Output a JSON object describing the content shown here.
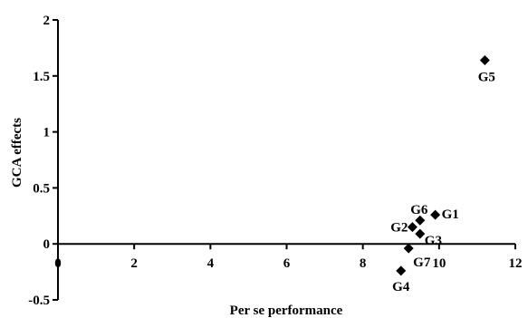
{
  "chart_data": {
    "type": "scatter",
    "title": "",
    "xlabel": "Per se performance",
    "ylabel": "GCA effects",
    "xlim": [
      0,
      12
    ],
    "ylim": [
      -0.5,
      2
    ],
    "x_ticks": [
      0,
      2,
      4,
      6,
      8,
      10,
      12
    ],
    "y_ticks": [
      -0.5,
      0,
      0.5,
      1,
      1.5,
      2
    ],
    "x_tick_labels": [
      "0",
      "2",
      "4",
      "6",
      "8",
      "10",
      "12"
    ],
    "y_tick_labels": [
      "-0.5",
      "0",
      "0.5",
      "1",
      "1.5",
      "2"
    ],
    "grid": false,
    "marker": "diamond",
    "marker_color": "#000000",
    "points": [
      {
        "label": "G1",
        "x": 9.9,
        "y": 0.26
      },
      {
        "label": "G2",
        "x": 9.3,
        "y": 0.15
      },
      {
        "label": "G3",
        "x": 9.5,
        "y": 0.09
      },
      {
        "label": "G4",
        "x": 9.0,
        "y": -0.24
      },
      {
        "label": "G5",
        "x": 11.2,
        "y": 1.64
      },
      {
        "label": "G6",
        "x": 9.5,
        "y": 0.21
      },
      {
        "label": "G7",
        "x": 9.2,
        "y": -0.04
      }
    ]
  }
}
